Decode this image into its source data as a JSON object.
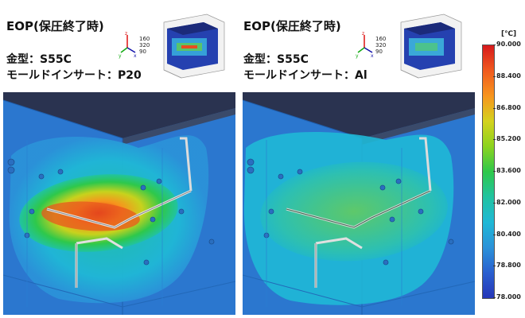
{
  "left": {
    "title": "EOP(保圧終了時)",
    "mold": "金型：S55C",
    "insert": "モールドインサート：P20",
    "axis_values": [
      "160",
      "320",
      "90"
    ]
  },
  "right": {
    "title": "EOP(保圧終了時)",
    "mold": "金型：S55C",
    "insert": "モールドインサート：Al",
    "axis_values": [
      "160",
      "320",
      "90"
    ]
  },
  "legend": {
    "unit": "[℃]",
    "ticks": [
      "90.000",
      "88.400",
      "86.800",
      "85.200",
      "83.600",
      "82.000",
      "80.400",
      "78.800",
      "78.000"
    ],
    "colors": {
      "max": "#d7191c",
      "mid": "#2ec84b",
      "min": "#2636b8"
    }
  }
}
